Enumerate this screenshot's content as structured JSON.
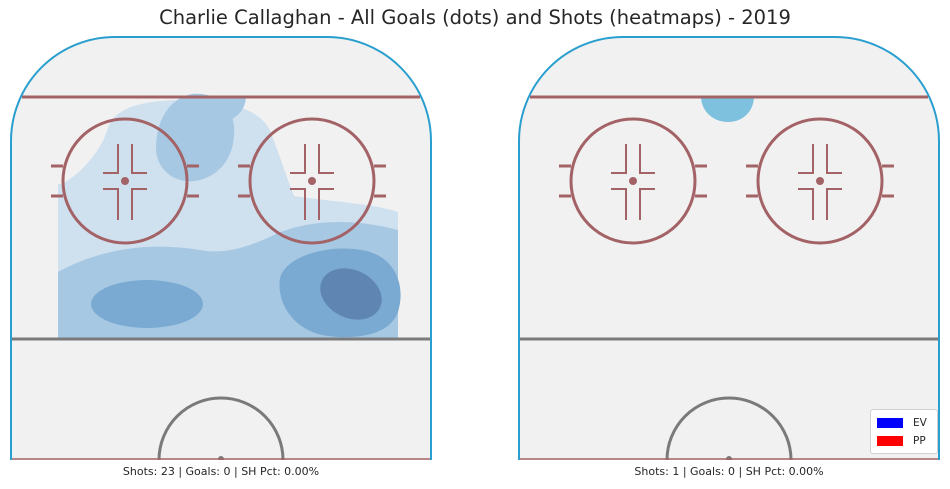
{
  "title": "Charlie Callaghan - All Goals (dots) and Shots (heatmaps) - 2019",
  "panels": [
    {
      "caption": "Shots: 23 | Goals: 0 | SH Pct: 0.00%"
    },
    {
      "caption": "Shots: 1 | Goals: 0 | SH Pct: 0.00%"
    }
  ],
  "legend": {
    "items": [
      {
        "label": "EV",
        "color": "#0000ff"
      },
      {
        "label": "PP",
        "color": "#ff0000"
      }
    ]
  },
  "colors": {
    "rink_fill": "#f1f1f1",
    "boards": "#2a9fcf",
    "red_line": "#a36265",
    "center_line": "#7a7a7a",
    "heat_levels": [
      "#cfe0ef",
      "#a6c8e3",
      "#7aaad2",
      "#5f86b3"
    ]
  },
  "chart_data": {
    "type": "heatmap",
    "title": "Charlie Callaghan - All Goals (dots) and Shots (heatmaps) - 2019",
    "panels": [
      {
        "shots": 23,
        "goals": 0,
        "sh_pct": "0.00%",
        "goal_dots": []
      },
      {
        "shots": 1,
        "goals": 0,
        "sh_pct": "0.00%",
        "goal_dots": []
      }
    ],
    "legend": [
      "EV",
      "PP"
    ],
    "legend_position": "lower-right"
  }
}
